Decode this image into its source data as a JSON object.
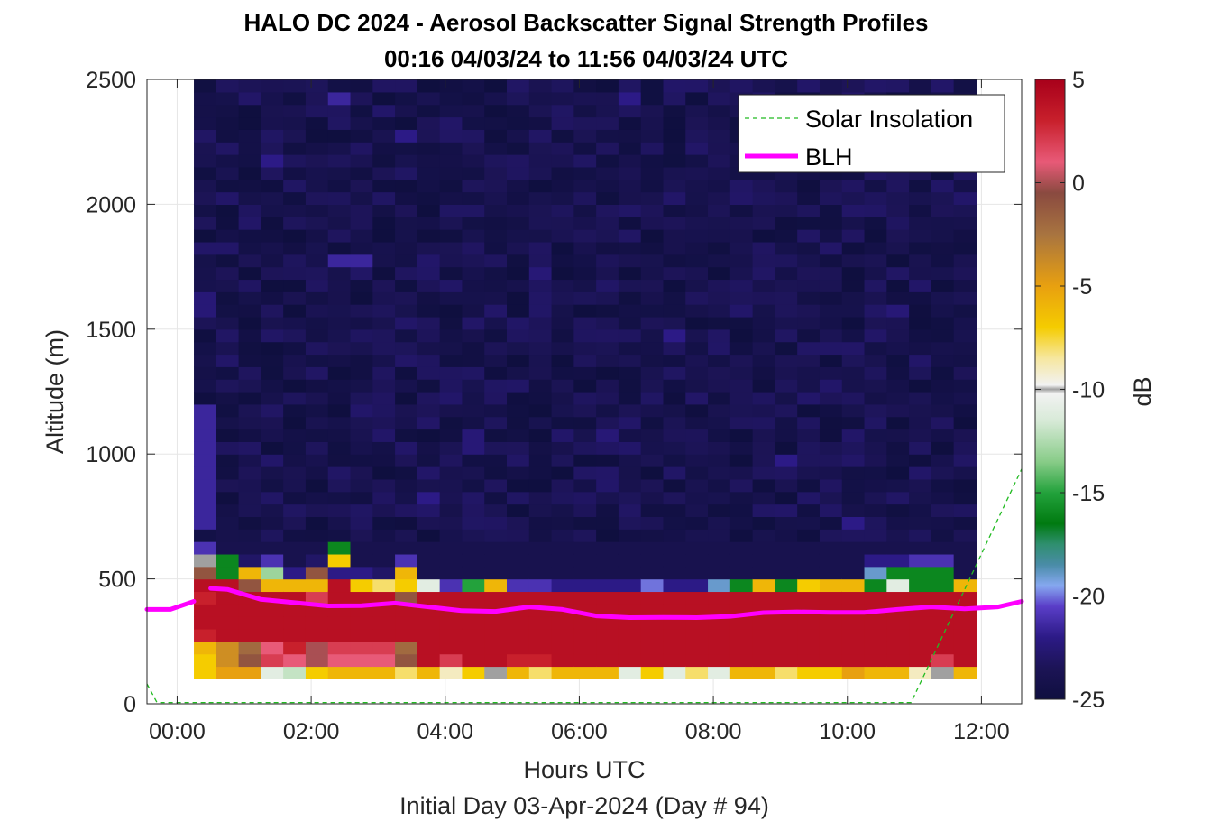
{
  "chart_data": {
    "type": "heatmap",
    "title": "HALO DC 2024 - Aerosol Backscatter Signal Strength Profiles",
    "subtitle": "00:16 04/03/24 to 11:56 04/03/24  UTC",
    "xlabel": "Hours UTC",
    "xlabel2": "Initial Day 03-Apr-2024 (Day # 94)",
    "ylabel": "Altitude (m)",
    "colorbar_label": "dB",
    "xlim_hours": [
      -0.45,
      12.6
    ],
    "ylim": [
      0,
      2500
    ],
    "x_ticks": [
      {
        "value": 0,
        "label": "00:00"
      },
      {
        "value": 2,
        "label": "02:00"
      },
      {
        "value": 4,
        "label": "04:00"
      },
      {
        "value": 6,
        "label": "06:00"
      },
      {
        "value": 8,
        "label": "08:00"
      },
      {
        "value": 10,
        "label": "10:00"
      },
      {
        "value": 12,
        "label": "12:00"
      }
    ],
    "y_ticks": [
      {
        "value": 0,
        "label": "0"
      },
      {
        "value": 500,
        "label": "500"
      },
      {
        "value": 1000,
        "label": "1000"
      },
      {
        "value": 1500,
        "label": "1500"
      },
      {
        "value": 2000,
        "label": "2000"
      },
      {
        "value": 2500,
        "label": "2500"
      }
    ],
    "colorbar_range": [
      -25,
      5
    ],
    "colorbar_ticks": [
      {
        "value": 5,
        "label": "5"
      },
      {
        "value": 0,
        "label": "0"
      },
      {
        "value": -5,
        "label": "-5"
      },
      {
        "value": -10,
        "label": "-10"
      },
      {
        "value": -15,
        "label": "-15"
      },
      {
        "value": -20,
        "label": "-20"
      },
      {
        "value": -25,
        "label": "-25"
      }
    ],
    "colormap": [
      {
        "value": -25,
        "color": "#0f0f3f"
      },
      {
        "value": -23.5,
        "color": "#1c1456"
      },
      {
        "value": -22,
        "color": "#2c1a86"
      },
      {
        "value": -20.5,
        "color": "#5a3ec8"
      },
      {
        "value": -19.5,
        "color": "#86a8f0"
      },
      {
        "value": -18.5,
        "color": "#4a8ca8"
      },
      {
        "value": -17.5,
        "color": "#2f8f6f"
      },
      {
        "value": -16.5,
        "color": "#007a10"
      },
      {
        "value": -15,
        "color": "#23a23c"
      },
      {
        "value": -13.5,
        "color": "#88cc88"
      },
      {
        "value": -11.5,
        "color": "#d8ead8"
      },
      {
        "value": -10.2,
        "color": "#f2f2f2"
      },
      {
        "value": -10,
        "color": "#a0a0a0"
      },
      {
        "value": -9.8,
        "color": "#f2f2f2"
      },
      {
        "value": -8.5,
        "color": "#f6e7a0"
      },
      {
        "value": -7,
        "color": "#f5cc00"
      },
      {
        "value": -5,
        "color": "#e8a010"
      },
      {
        "value": -2.5,
        "color": "#a87440"
      },
      {
        "value": -0.5,
        "color": "#8a4a40"
      },
      {
        "value": 1,
        "color": "#e85a78"
      },
      {
        "value": 3,
        "color": "#c8202c"
      },
      {
        "value": 5,
        "color": "#a8001a"
      }
    ],
    "grid_time_range": [
      0.25,
      11.92
    ],
    "grid_altitude_range": [
      100,
      2500
    ],
    "grid_columns": 35,
    "bin_height_m": 50,
    "low_rows_db": [
      [
        -7,
        -5,
        -5,
        -11,
        -12,
        -7,
        -6,
        -6,
        -6,
        -8,
        -6,
        -9,
        -7,
        -10,
        -6,
        -8,
        -6,
        -6,
        -6,
        -11,
        -7,
        -11,
        -8,
        -11,
        -6,
        -6,
        -8,
        -7,
        -7,
        -5,
        -6,
        -6,
        -9,
        -10,
        -6
      ],
      [
        -7,
        -4,
        -1,
        2,
        1,
        0,
        1,
        1,
        1,
        -1,
        4,
        2,
        4,
        4,
        3,
        3,
        4,
        4,
        4,
        4,
        4,
        4,
        4,
        4,
        4,
        4,
        4,
        4,
        4,
        4,
        4,
        4,
        4,
        2,
        4
      ],
      [
        -6,
        -4,
        -2,
        1,
        3,
        0,
        2,
        2,
        2,
        -2,
        4,
        4,
        4,
        4,
        4,
        4,
        4,
        4,
        4,
        4,
        4,
        4,
        4,
        4,
        4,
        4,
        4,
        4,
        4,
        4,
        4,
        4,
        4,
        4,
        4
      ],
      [
        3,
        4,
        4,
        4,
        4,
        4,
        4,
        4,
        4,
        4,
        4,
        4,
        4,
        4,
        4,
        4,
        4,
        4,
        4,
        4,
        4,
        4,
        4,
        4,
        4,
        4,
        4,
        4,
        4,
        4,
        4,
        4,
        4,
        4,
        4
      ],
      [
        4,
        4,
        4,
        4,
        4,
        4,
        4,
        4,
        4,
        4,
        4,
        4,
        4,
        4,
        4,
        4,
        4,
        4,
        4,
        4,
        4,
        4,
        4,
        4,
        4,
        4,
        4,
        4,
        4,
        4,
        4,
        4,
        4,
        4,
        4
      ],
      [
        4,
        4,
        4,
        4,
        4,
        4,
        4,
        4,
        4,
        4,
        4,
        4,
        4,
        4,
        4,
        4,
        4,
        4,
        4,
        4,
        4,
        4,
        4,
        4,
        4,
        4,
        4,
        4,
        4,
        4,
        4,
        4,
        4,
        4,
        4
      ],
      [
        3,
        4,
        4,
        4,
        4,
        2,
        4,
        4,
        4,
        -1,
        4,
        4,
        4,
        4,
        4,
        4,
        4,
        4,
        4,
        4,
        4,
        4,
        4,
        4,
        4,
        4,
        4,
        4,
        4,
        4,
        4,
        4,
        4,
        4,
        4
      ],
      [
        4,
        4,
        -1,
        -6,
        -6,
        -6,
        4,
        -7,
        -8,
        -7,
        -11,
        -21,
        -15,
        -6,
        -21,
        -21,
        -22,
        -22,
        -22,
        -22,
        -20,
        -22,
        -22,
        -19,
        -16,
        -6,
        -16,
        -7,
        -6,
        -6,
        -16,
        -11,
        -16,
        -16,
        -6
      ],
      [
        -1,
        -16,
        -6,
        -13,
        -22,
        -1,
        -22,
        -22,
        -23,
        -6,
        -24,
        -24,
        -24,
        -24,
        -24,
        -24,
        -24,
        -24,
        -24,
        -24,
        -24,
        -24,
        -24,
        -24,
        -24,
        -24,
        -24,
        -24,
        -24,
        -24,
        -19,
        -16,
        -16,
        -16,
        -24
      ],
      [
        -10,
        -16,
        -23,
        -21,
        -24,
        -23,
        -7,
        -24,
        -24,
        -21,
        -24,
        -24,
        -24,
        -24,
        -24,
        -24,
        -24,
        -24,
        -24,
        -24,
        -24,
        -24,
        -24,
        -24,
        -24,
        -24,
        -24,
        -24,
        -24,
        -24,
        -22,
        -22,
        -21,
        -21,
        -24
      ],
      [
        -21,
        -24,
        -24,
        -24,
        -24,
        -24,
        -16,
        -24,
        -24,
        -24,
        -24,
        -24,
        -24,
        -24,
        -24,
        -24,
        -24,
        -24,
        -24,
        -24,
        -24,
        -24,
        -24,
        -24,
        -24,
        -24,
        -24,
        -24,
        -24,
        -24,
        -24,
        -24,
        -24,
        -24,
        -24
      ]
    ],
    "upper_background_db": -24,
    "upper_highlights": [
      {
        "col": 0,
        "alt": [
          700,
          1200
        ],
        "db": -21.5
      },
      {
        "col": 0,
        "alt": [
          1550,
          1650
        ],
        "db": -22.5
      },
      {
        "col": 3,
        "alt": [
          2150,
          2200
        ],
        "db": -22
      },
      {
        "col": 6,
        "alt": [
          1750,
          1800
        ],
        "db": -21.5
      },
      {
        "col": 6,
        "alt": [
          2400,
          2450
        ],
        "db": -21.5
      },
      {
        "col": 7,
        "alt": [
          1750,
          1800
        ],
        "db": -21.5
      },
      {
        "col": 9,
        "alt": [
          2250,
          2300
        ],
        "db": -22
      },
      {
        "col": 10,
        "alt": [
          800,
          850
        ],
        "db": -22
      },
      {
        "col": 12,
        "alt": [
          1000,
          1100
        ],
        "db": -22.5
      },
      {
        "col": 13,
        "alt": [
          600,
          650
        ],
        "db": -22
      },
      {
        "col": 14,
        "alt": [
          600,
          650
        ],
        "db": -22
      },
      {
        "col": 15,
        "alt": [
          1700,
          1750
        ],
        "db": -22.5
      },
      {
        "col": 18,
        "alt": [
          1050,
          1100
        ],
        "db": -22.5
      },
      {
        "col": 19,
        "alt": [
          2400,
          2450
        ],
        "db": -22
      },
      {
        "col": 21,
        "alt": [
          1450,
          1500
        ],
        "db": -22
      },
      {
        "col": 24,
        "alt": [
          550,
          600
        ],
        "db": -22.5
      },
      {
        "col": 26,
        "alt": [
          950,
          1000
        ],
        "db": -22
      },
      {
        "col": 29,
        "alt": [
          700,
          750
        ],
        "db": -22
      },
      {
        "col": 31,
        "alt": [
          1550,
          1600
        ],
        "db": -22.5
      }
    ],
    "series": [
      {
        "name": "Solar Insolation",
        "style": "dashed",
        "color": "#22bb22",
        "x": [
          -0.45,
          -0.3,
          10.95,
          12.6
        ],
        "y": [
          80,
          5,
          5,
          940
        ]
      },
      {
        "name": "BLH",
        "style": "solid",
        "color": "#ff00ff",
        "segments": [
          {
            "x": [
              -0.45,
              -0.1,
              0.25
            ],
            "y": [
              378,
              378,
              410
            ]
          },
          {
            "x": [
              0.5,
              0.75,
              1.25,
              1.75,
              2.25,
              2.75,
              3.25,
              3.75,
              4.25,
              4.75,
              5.25,
              5.75,
              6.25,
              6.75,
              7.25,
              7.75,
              8.25,
              8.75,
              9.25,
              9.75,
              10.25,
              10.75,
              11.25,
              11.75,
              12.25,
              12.6
            ],
            "y": [
              462,
              458,
              418,
              405,
              392,
              393,
              403,
              388,
              373,
              370,
              388,
              378,
              352,
              345,
              346,
              345,
              350,
              365,
              368,
              366,
              366,
              378,
              388,
              380,
              388,
              410
            ]
          }
        ]
      }
    ],
    "legend": {
      "position": "top-right",
      "entries": [
        "Solar Insolation",
        "BLH"
      ]
    },
    "grid": true
  }
}
